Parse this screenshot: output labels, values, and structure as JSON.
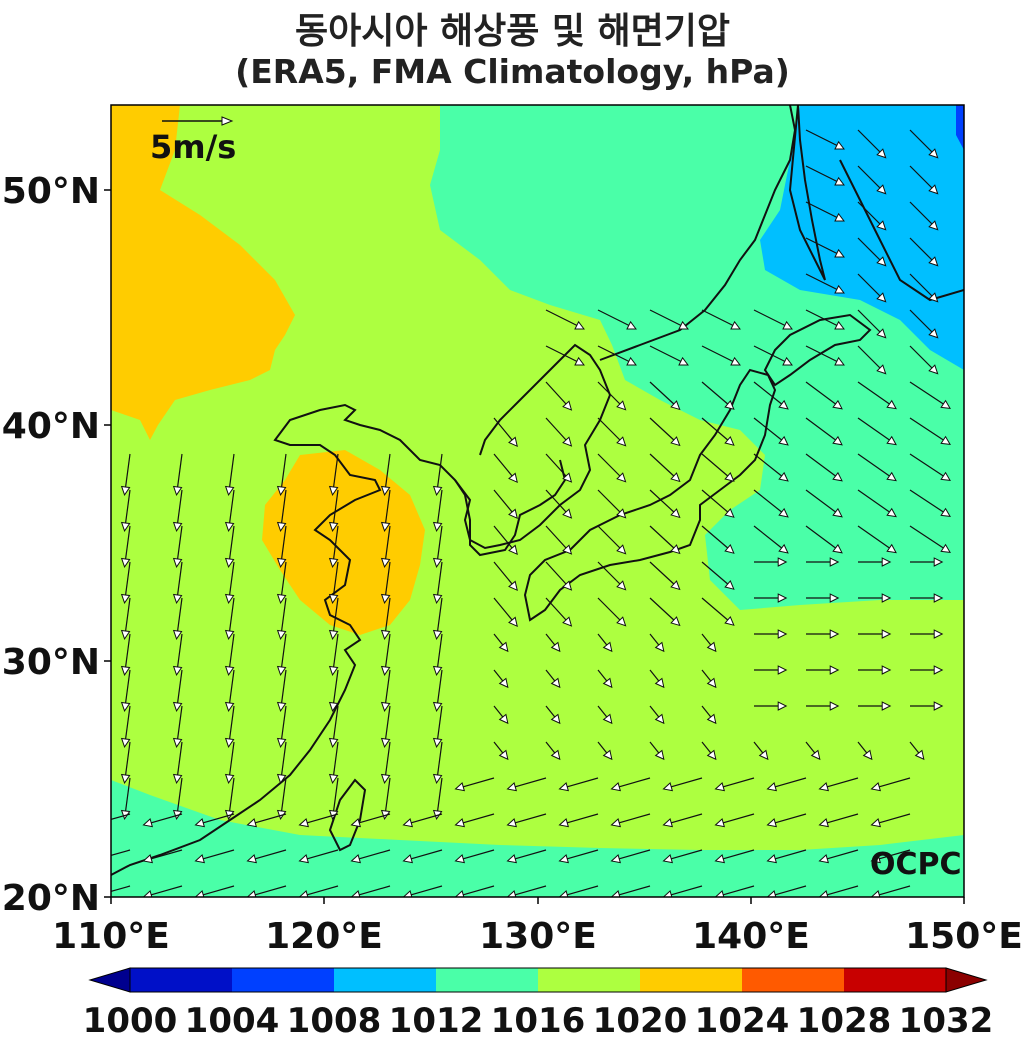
{
  "title": {
    "line1": "동아시아 해상풍 및 해면기압",
    "line2": "(ERA5, FMA Climatology, hPa)"
  },
  "map": {
    "lon_range": [
      110,
      150
    ],
    "lat_range": [
      20,
      53.5
    ],
    "lon_ticks": [
      "110°E",
      "120°E",
      "130°E",
      "140°E",
      "150°E"
    ],
    "lat_ticks": [
      "20°N",
      "30°N",
      "40°N",
      "50°N"
    ],
    "reference_vector_label": "5m/s",
    "reference_vector_speed_ms": 5,
    "credit": "OCPC"
  },
  "colorbar": {
    "levels": [
      "1000",
      "1004",
      "1008",
      "1012",
      "1016",
      "1020",
      "1024",
      "1028",
      "1032"
    ],
    "colors": {
      "under": "#00008f",
      "c1000": "#0010c8",
      "c1004": "#0040ff",
      "c1008": "#00bfff",
      "c1012": "#4affa8",
      "c1016": "#adff40",
      "c1020": "#ffcc00",
      "c1024": "#ff5a00",
      "c1028": "#c80000",
      "over": "#8b0000"
    }
  }
}
